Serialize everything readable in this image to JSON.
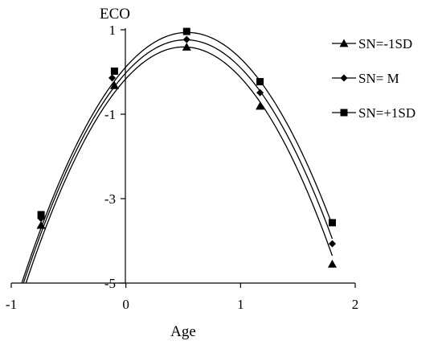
{
  "chart_data": {
    "type": "line",
    "title": "",
    "xlabel": "Age",
    "ylabel": "ECO",
    "xlim": [
      -1,
      2
    ],
    "ylim": [
      -5,
      1
    ],
    "xticks": [
      -1,
      0,
      1,
      2
    ],
    "yticks": [
      1,
      -1,
      -3,
      -5
    ],
    "grid": false,
    "legend_position": "top-right",
    "series": [
      {
        "name": "SN=-1SD",
        "marker": "triangle",
        "color": "#000000",
        "points": [
          [
            -0.74,
            -3.63
          ],
          [
            -0.1,
            -0.32
          ],
          [
            0.53,
            0.59
          ],
          [
            1.17,
            -0.81
          ],
          [
            1.8,
            -4.55
          ]
        ],
        "curve": {
          "a": -2.95,
          "b": 2.98,
          "c": -0.16
        }
      },
      {
        "name": "SN= M",
        "marker": "diamond",
        "color": "#000000",
        "points": [
          [
            -0.74,
            -3.47
          ],
          [
            -0.12,
            -0.14
          ],
          [
            0.53,
            0.77
          ],
          [
            1.17,
            -0.49
          ],
          [
            1.8,
            -4.07
          ]
        ],
        "curve": {
          "a": -2.88,
          "b": 3.0,
          "c": -0.02
        }
      },
      {
        "name": "SN=+1SD",
        "marker": "square",
        "color": "#000000",
        "points": [
          [
            -0.74,
            -3.38
          ],
          [
            -0.1,
            0.02
          ],
          [
            0.53,
            0.96
          ],
          [
            1.17,
            -0.23
          ],
          [
            1.8,
            -3.57
          ]
        ],
        "curve": {
          "a": -2.85,
          "b": 3.05,
          "c": 0.12
        }
      }
    ]
  }
}
